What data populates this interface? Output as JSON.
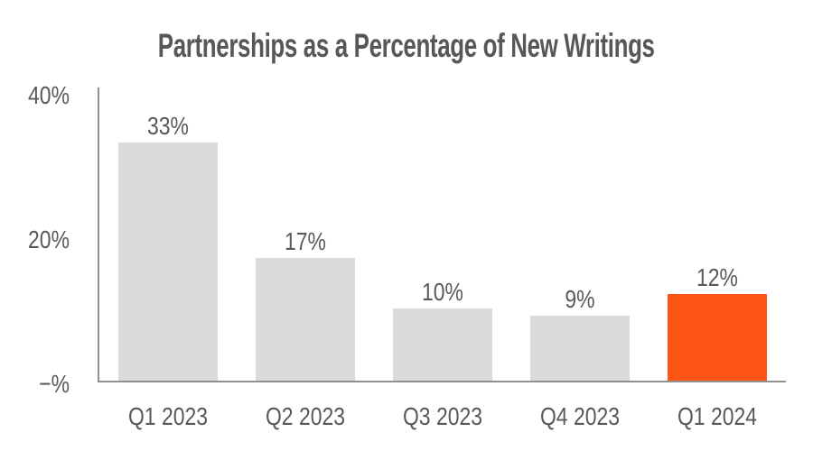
{
  "title": "Partnerships as a Percentage of New Writings",
  "colors": {
    "background": "#FFFFFF",
    "bar": "#DBDBDB",
    "bar_highlight": "#FC5515",
    "axis_line": "#909090",
    "label_text": "#595959",
    "title_text": "#575756"
  },
  "chart_data": {
    "type": "bar",
    "title": "Partnerships as a Percentage of New Writings",
    "categories": [
      "Q1 2023",
      "Q2 2023",
      "Q3 2023",
      "Q4 2023",
      "Q1 2024"
    ],
    "values": [
      33,
      17,
      10,
      9,
      12
    ],
    "data_labels": [
      "33%",
      "17%",
      "10%",
      "9%",
      "12%"
    ],
    "highlight_index": 4,
    "highlight_category": "Q1 2024",
    "xlabel": "",
    "ylabel": "",
    "ylim": [
      0,
      40
    ],
    "y_ticks": [
      {
        "value": 40,
        "label": "40%"
      },
      {
        "value": 20,
        "label": "20%"
      },
      {
        "value": 0,
        "label": "−%"
      }
    ],
    "grid": false,
    "legend": "none"
  }
}
